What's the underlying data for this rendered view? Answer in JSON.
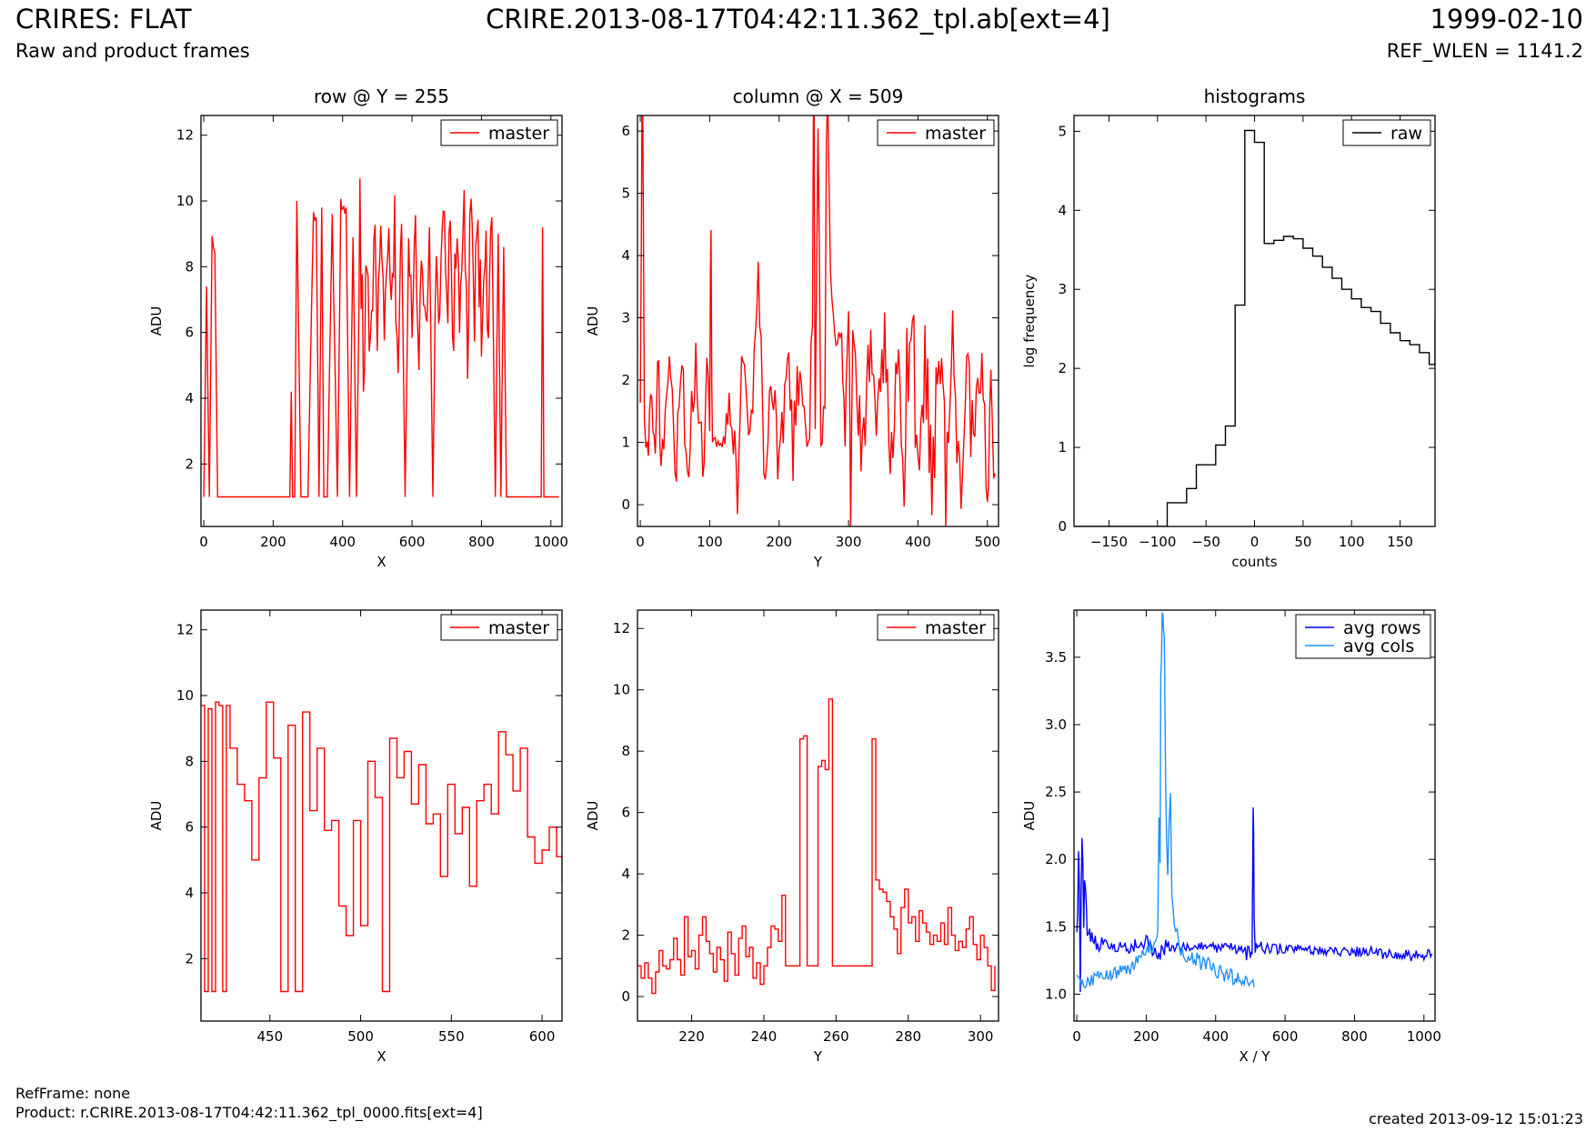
{
  "header": {
    "title": "CRIRES: FLAT",
    "subtitle": "Raw and product frames",
    "file": "CRIRE.2013-08-17T04:42:11.362_tpl.ab[ext=4]",
    "date": "1999-02-10",
    "ref_wlen": "REF_WLEN = 1141.2"
  },
  "footer": {
    "refframe": "RefFrame: none",
    "product": "Product: r.CRIRE.2013-08-17T04:42:11.362_tpl_0000.fits[ext=4]",
    "created": "created 2013-09-12 15:01:23"
  },
  "colors": {
    "master": "#ff0000",
    "raw": "#000000",
    "avg_rows": "#0000ff",
    "avg_cols": "#1e90ff"
  },
  "chart_data": [
    {
      "id": "row-full",
      "type": "line",
      "title": "row @ Y = 255",
      "xlabel": "X",
      "ylabel": "ADU",
      "xlim": [
        -8,
        1032
      ],
      "ylim": [
        0.1,
        12.6
      ],
      "xticks": [
        0,
        200,
        400,
        600,
        800,
        1000
      ],
      "yticks": [
        2,
        4,
        6,
        8,
        10,
        12
      ],
      "legend": "top-right",
      "series": [
        {
          "name": "master",
          "color": "#ff0000",
          "style": "noise",
          "x": [
            0,
            8,
            16,
            24,
            32,
            40,
            60,
            100,
            150,
            200,
            248,
            252,
            256,
            262,
            268,
            280,
            300,
            316,
            324,
            332,
            340,
            346,
            356,
            370,
            385,
            395,
            400,
            410,
            420,
            430,
            440,
            450,
            460,
            470,
            480,
            490,
            500,
            510,
            520,
            530,
            540,
            550,
            560,
            570,
            580,
            590,
            600,
            610,
            620,
            630,
            640,
            650,
            660,
            670,
            680,
            690,
            700,
            710,
            720,
            730,
            740,
            750,
            760,
            770,
            780,
            790,
            800,
            810,
            820,
            830,
            840,
            848,
            856,
            864,
            872,
            880,
            900,
            920,
            940,
            960,
            972,
            976,
            980,
            1000,
            1023
          ],
          "y": [
            1,
            7.4,
            1,
            8.8,
            8.4,
            1,
            1,
            1,
            1,
            1,
            1,
            4.2,
            1,
            1,
            10,
            1,
            1,
            9.8,
            9.5,
            1,
            9.8,
            1,
            1,
            9.6,
            1,
            9.9,
            9.7,
            9.8,
            1,
            8.9,
            1,
            9.2,
            4.5,
            8.7,
            5.2,
            9.1,
            6.3,
            8.6,
            5.4,
            9.0,
            6.6,
            8.8,
            5.1,
            9.3,
            1,
            8.4,
            6.8,
            9.4,
            5.8,
            8.1,
            6.3,
            9.2,
            1,
            9.6,
            5.4,
            9.7,
            6.4,
            8.9,
            5.9,
            9.4,
            6.1,
            9.8,
            5.5,
            9.4,
            6.5,
            9.7,
            5.4,
            9.2,
            6.1,
            9.5,
            1,
            9.0,
            1,
            8.6,
            1,
            1,
            1,
            1,
            1,
            1,
            1,
            9.2,
            1,
            1,
            1
          ]
        }
      ]
    },
    {
      "id": "col-full",
      "type": "line",
      "title": "column @ X = 509",
      "xlabel": "Y",
      "ylabel": "ADU",
      "xlim": [
        -4,
        516
      ],
      "ylim": [
        -0.35,
        6.25
      ],
      "xticks": [
        0,
        100,
        200,
        300,
        400,
        500
      ],
      "yticks": [
        0,
        1,
        2,
        3,
        4,
        5,
        6
      ],
      "legend": "top-right",
      "series": [
        {
          "name": "master",
          "color": "#ff0000",
          "style": "noise",
          "x": [
            0,
            3,
            6,
            10,
            15,
            20,
            25,
            30,
            40,
            50,
            60,
            70,
            80,
            90,
            100,
            102,
            104,
            110,
            120,
            130,
            140,
            150,
            160,
            170,
            180,
            190,
            200,
            210,
            220,
            230,
            240,
            246,
            250,
            252,
            256,
            260,
            264,
            270,
            276,
            280,
            290,
            295,
            300,
            303,
            306,
            310,
            320,
            330,
            340,
            350,
            360,
            370,
            380,
            390,
            400,
            410,
            420,
            430,
            440,
            450,
            460,
            470,
            480,
            490,
            500,
            505,
            511
          ],
          "y": [
            1,
            6.25,
            1.5,
            0.7,
            1.8,
            0.9,
            2.2,
            0.5,
            2.4,
            0.6,
            2.1,
            0.6,
            2.3,
            0.5,
            2.4,
            6.25,
            1,
            1,
            1,
            1.8,
            0.5,
            2.5,
            1.1,
            3.5,
            0.8,
            2.2,
            0.5,
            2.6,
            0.9,
            2.3,
            1,
            1,
            6.25,
            1,
            6.25,
            1,
            1,
            6.25,
            3.1,
            2.6,
            2.9,
            1.5,
            3.6,
            0.2,
            2.8,
            2.2,
            0.4,
            2.5,
            0.9,
            2.7,
            0.3,
            2.2,
            0.6,
            3.9,
            0.5,
            2.4,
            0.3,
            2.9,
            0.4,
            2.5,
            0.3,
            2.6,
            0.6,
            2.2,
            0.4,
            1.8,
            0.5
          ]
        }
      ]
    },
    {
      "id": "hist",
      "type": "step",
      "title": "histograms",
      "xlabel": "counts",
      "ylabel": "log frequency",
      "xlim": [
        -186,
        186
      ],
      "ylim": [
        0,
        5.2
      ],
      "xticks": [
        -150,
        -100,
        -50,
        0,
        50,
        100,
        150
      ],
      "yticks": [
        0,
        1,
        2,
        3,
        4,
        5
      ],
      "legend": "top-right",
      "series": [
        {
          "name": "raw",
          "color": "#000000",
          "x": [
            -186,
            -100,
            -90,
            -80,
            -70,
            -60,
            -50,
            -40,
            -30,
            -20,
            -10,
            0,
            10,
            20,
            30,
            40,
            50,
            60,
            70,
            80,
            90,
            100,
            110,
            120,
            130,
            140,
            150,
            160,
            170,
            180,
            186
          ],
          "y": [
            0,
            0,
            0.3,
            0.3,
            0.48,
            0.78,
            0.78,
            1.03,
            1.27,
            2.8,
            5.01,
            4.86,
            3.58,
            3.62,
            3.67,
            3.64,
            3.52,
            3.42,
            3.28,
            3.14,
            3.0,
            2.88,
            2.77,
            2.72,
            2.57,
            2.45,
            2.35,
            2.3,
            2.2,
            2.05,
            2.62
          ]
        }
      ]
    },
    {
      "id": "row-zoom",
      "type": "line",
      "title": "",
      "xlabel": "X",
      "ylabel": "ADU",
      "xlim": [
        412,
        611
      ],
      "ylim": [
        0.1,
        12.6
      ],
      "xticks": [
        450,
        500,
        550,
        600
      ],
      "yticks": [
        2,
        4,
        6,
        8,
        10,
        12
      ],
      "legend": "top-right",
      "series": [
        {
          "name": "master",
          "color": "#ff0000",
          "style": "step",
          "x": [
            412,
            414,
            416,
            418,
            420,
            422,
            424,
            426,
            428,
            432,
            436,
            440,
            444,
            448,
            452,
            456,
            460,
            464,
            468,
            472,
            476,
            480,
            484,
            488,
            492,
            496,
            500,
            504,
            508,
            512,
            516,
            520,
            524,
            528,
            532,
            536,
            540,
            544,
            548,
            552,
            556,
            560,
            564,
            568,
            572,
            576,
            580,
            584,
            588,
            592,
            596,
            600,
            604,
            608,
            611
          ],
          "y": [
            9.7,
            1,
            9.6,
            1,
            9.8,
            9.7,
            1,
            9.7,
            8.4,
            7.3,
            6.8,
            5.0,
            7.5,
            9.8,
            8.1,
            1,
            9.1,
            1,
            9.5,
            6.5,
            8.4,
            5.9,
            6.2,
            3.6,
            2.7,
            6.2,
            3.0,
            8.0,
            6.9,
            1,
            8.7,
            7.5,
            8.3,
            6.7,
            7.9,
            6.1,
            6.4,
            4.5,
            7.3,
            5.8,
            6.6,
            4.2,
            6.8,
            7.3,
            6.4,
            8.9,
            8.2,
            7.1,
            8.4,
            5.7,
            4.9,
            5.3,
            6.0,
            5.1,
            4.3
          ]
        }
      ]
    },
    {
      "id": "col-zoom",
      "type": "line",
      "title": "",
      "xlabel": "Y",
      "ylabel": "ADU",
      "xlim": [
        205,
        305
      ],
      "ylim": [
        -0.8,
        12.6
      ],
      "xticks": [
        220,
        240,
        260,
        280,
        300
      ],
      "yticks": [
        0,
        2,
        4,
        6,
        8,
        10,
        12
      ],
      "legend": "top-right",
      "series": [
        {
          "name": "master",
          "color": "#ff0000",
          "style": "step",
          "x": [
            205,
            206,
            207,
            208,
            209,
            210,
            211,
            212,
            213,
            214,
            215,
            216,
            217,
            218,
            219,
            220,
            221,
            222,
            223,
            224,
            225,
            226,
            227,
            228,
            229,
            230,
            231,
            232,
            233,
            234,
            235,
            236,
            237,
            238,
            239,
            240,
            241,
            242,
            243,
            244,
            245,
            246,
            247,
            248,
            249,
            250,
            251,
            252,
            253,
            254,
            255,
            256,
            257,
            258,
            259,
            260,
            261,
            262,
            263,
            264,
            265,
            266,
            267,
            268,
            269,
            270,
            271,
            272,
            273,
            274,
            275,
            276,
            277,
            278,
            279,
            280,
            281,
            282,
            283,
            284,
            285,
            286,
            287,
            288,
            289,
            290,
            291,
            292,
            293,
            294,
            295,
            296,
            297,
            298,
            299,
            300,
            301,
            302,
            303,
            304
          ],
          "y": [
            1.0,
            0.6,
            1.1,
            0.6,
            0.1,
            0.8,
            1.5,
            1.0,
            0.9,
            1.2,
            1.9,
            1.2,
            0.7,
            2.6,
            1.3,
            1.5,
            0.9,
            2.0,
            2.6,
            1.8,
            1.4,
            0.8,
            1.6,
            1.2,
            0.5,
            2.1,
            1.4,
            0.7,
            1.9,
            2.3,
            1.3,
            1.6,
            0.6,
            1.1,
            0.4,
            1.0,
            1.6,
            2.3,
            2.2,
            1.8,
            3.3,
            1.0,
            1.0,
            1.0,
            1.0,
            8.4,
            8.5,
            1.0,
            1.0,
            1.0,
            7.5,
            7.7,
            7.4,
            9.7,
            1.0,
            1.0,
            1.0,
            1.0,
            1.0,
            1.0,
            1.0,
            1.0,
            1.0,
            1.0,
            1.0,
            8.4,
            3.8,
            3.5,
            3.4,
            3.1,
            2.6,
            2.2,
            1.4,
            2.9,
            3.5,
            2.4,
            2.6,
            1.8,
            2.8,
            2.4,
            2.1,
            1.7,
            2.0,
            1.8,
            2.4,
            1.7,
            2.9,
            2.0,
            1.5,
            1.8,
            1.6,
            2.2,
            2.6,
            1.7,
            1.2,
            2.0,
            1.6,
            1.0,
            0.2,
            1.0
          ]
        }
      ]
    },
    {
      "id": "avg",
      "type": "line",
      "title": "",
      "xlabel": "X / Y",
      "ylabel": "ADU",
      "xlim": [
        -8,
        1032
      ],
      "ylim": [
        0.8,
        3.85
      ],
      "xticks": [
        0,
        200,
        400,
        600,
        800,
        1000
      ],
      "yticks": [
        1.0,
        1.5,
        2.0,
        2.5,
        3.0,
        3.5
      ],
      "legend": "top-right",
      "series": [
        {
          "name": "avg rows",
          "color": "#0000ff",
          "style": "noise",
          "x": [
            0,
            5,
            10,
            15,
            20,
            25,
            30,
            40,
            50,
            60,
            80,
            100,
            150,
            200,
            240,
            260,
            300,
            400,
            500,
            505,
            508,
            511,
            514,
            520,
            600,
            700,
            800,
            900,
            1000,
            1023
          ],
          "y": [
            1.5,
            1.9,
            1.3,
            2.4,
            1.6,
            2.0,
            1.5,
            1.4,
            1.45,
            1.35,
            1.4,
            1.35,
            1.35,
            1.38,
            1.3,
            1.36,
            1.35,
            1.35,
            1.3,
            1.4,
            2.45,
            1.5,
            1.3,
            1.35,
            1.33,
            1.32,
            1.32,
            1.3,
            1.28,
            1.3
          ]
        },
        {
          "name": "avg cols",
          "color": "#1e90ff",
          "style": "noise",
          "x": [
            0,
            20,
            50,
            100,
            150,
            200,
            230,
            240,
            244,
            248,
            252,
            256,
            262,
            270,
            278,
            285,
            300,
            350,
            400,
            450,
            500,
            511
          ],
          "y": [
            1.1,
            1.08,
            1.12,
            1.15,
            1.2,
            1.3,
            1.4,
            2.3,
            3.6,
            3.85,
            3.6,
            2.4,
            2.0,
            2.3,
            1.6,
            1.45,
            1.3,
            1.25,
            1.18,
            1.12,
            1.08,
            1.05
          ]
        }
      ]
    }
  ]
}
